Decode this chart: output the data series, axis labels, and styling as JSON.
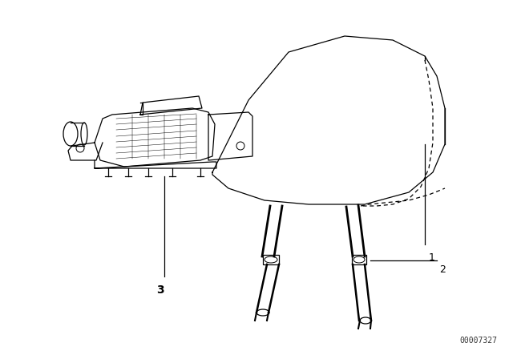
{
  "bg_color": "#ffffff",
  "line_color": "#000000",
  "diagram_id": "00007327",
  "fig_w": 6.4,
  "fig_h": 4.48,
  "dpi": 100
}
